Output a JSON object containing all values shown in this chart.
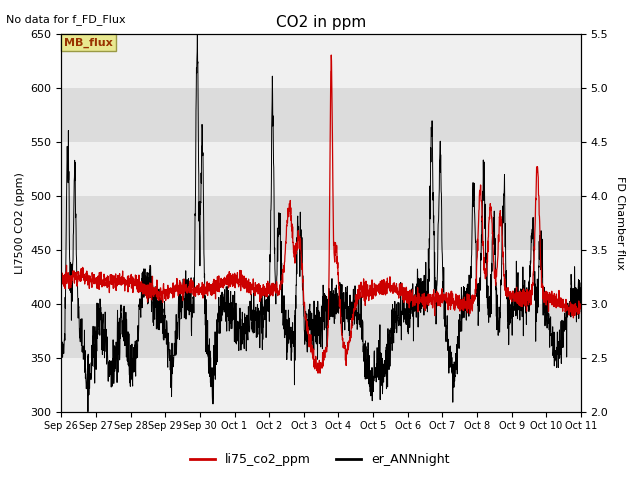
{
  "title": "CO2 in ppm",
  "top_left_text": "No data for f_FD_Flux",
  "ylabel_left": "LI7500 CO2 (ppm)",
  "ylabel_right": "FD Chamber flux",
  "ylim_left": [
    300,
    650
  ],
  "ylim_right": [
    2.0,
    5.5
  ],
  "yticks_left": [
    300,
    350,
    400,
    450,
    500,
    550,
    600,
    650
  ],
  "yticks_right": [
    2.0,
    2.5,
    3.0,
    3.5,
    4.0,
    4.5,
    5.0,
    5.5
  ],
  "xtick_labels": [
    "Sep 26",
    "Sep 27",
    "Sep 28",
    "Sep 29",
    "Sep 30",
    "Oct 1",
    "Oct 2",
    "Oct 3",
    "Oct 4",
    "Oct 5",
    "Oct 6",
    "Oct 7",
    "Oct 8",
    "Oct 9",
    "Oct 10",
    "Oct 11"
  ],
  "legend_labels": [
    "li75_co2_ppm",
    "er_ANNnight"
  ],
  "legend_colors": [
    "#cc0000",
    "#000000"
  ],
  "red_line_color": "#cc0000",
  "black_line_color": "#000000",
  "background_color": "#ffffff",
  "plot_bg_color": "#dcdcdc",
  "grid_band_light": "#f0f0f0",
  "grid_band_dark": "#dcdcdc",
  "mb_flux_box_facecolor": "#e8e890",
  "mb_flux_box_edgecolor": "#999944",
  "mb_flux_text": "MB_flux",
  "mb_flux_text_color": "#993300",
  "figsize": [
    6.4,
    4.8
  ],
  "dpi": 100,
  "n_days": 15.5
}
